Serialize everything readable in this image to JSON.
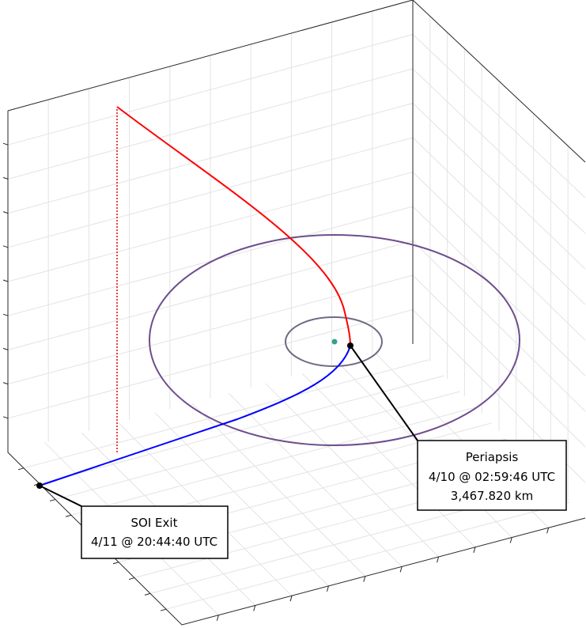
{
  "annotations": [
    {
      "lines": [
        "Periapsis",
        "4/10 @ 02:59:46 UTC",
        "3,467.820 km"
      ]
    },
    {
      "lines": [
        "SOI Exit",
        "4/11 @ 20:44:40 UTC"
      ]
    }
  ]
}
